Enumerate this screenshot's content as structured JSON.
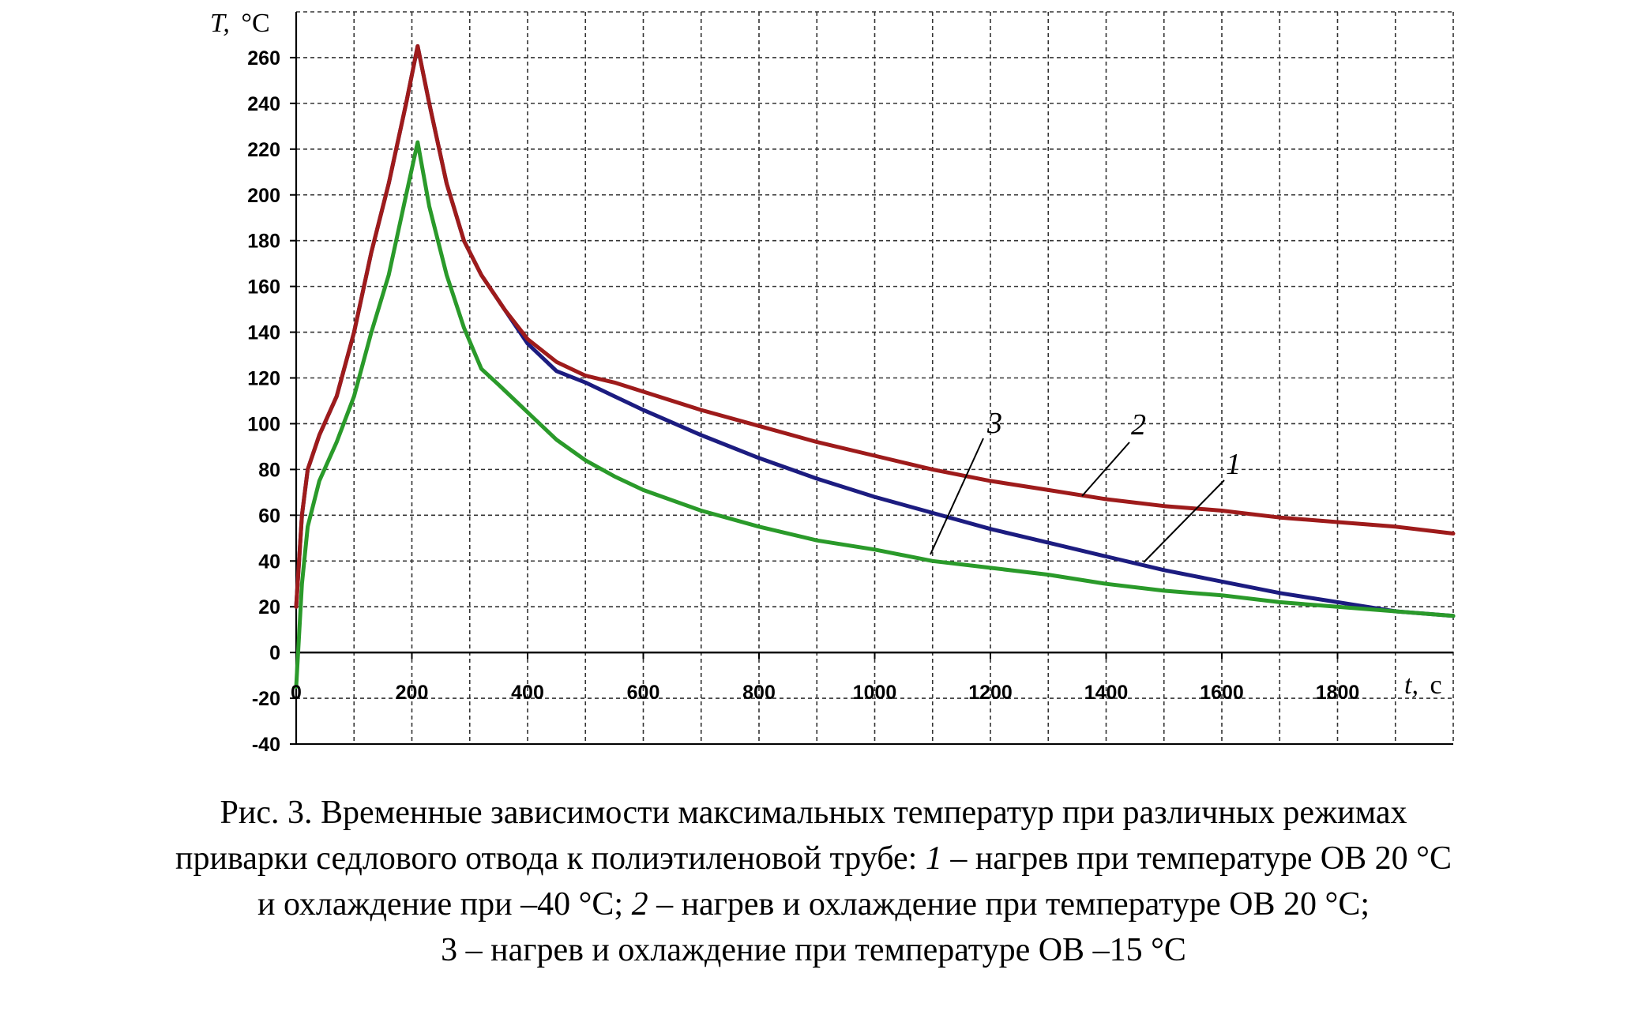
{
  "chart_data": {
    "type": "line",
    "xlabel_italic": "t,",
    "xlabel_unit": "c",
    "ylabel_italic": "T,",
    "ylabel_unit": "°C",
    "xlim": [
      0,
      2000
    ],
    "ylim": [
      -40,
      280
    ],
    "x_ticks": [
      0,
      200,
      400,
      600,
      800,
      1000,
      1200,
      1400,
      1600,
      1800
    ],
    "y_ticks": [
      -40,
      -20,
      0,
      20,
      40,
      60,
      80,
      100,
      120,
      140,
      160,
      180,
      200,
      220,
      240,
      260
    ],
    "grid": true,
    "series": [
      {
        "name": "1",
        "color": "#1c1c80",
        "points": [
          [
            0,
            20
          ],
          [
            10,
            60
          ],
          [
            20,
            80
          ],
          [
            40,
            95
          ],
          [
            70,
            112
          ],
          [
            100,
            140
          ],
          [
            130,
            175
          ],
          [
            160,
            205
          ],
          [
            190,
            240
          ],
          [
            210,
            265
          ],
          [
            230,
            240
          ],
          [
            260,
            205
          ],
          [
            290,
            180
          ],
          [
            320,
            165
          ],
          [
            360,
            150
          ],
          [
            400,
            135
          ],
          [
            450,
            123
          ],
          [
            500,
            118
          ],
          [
            550,
            112
          ],
          [
            600,
            106
          ],
          [
            700,
            95
          ],
          [
            800,
            85
          ],
          [
            900,
            76
          ],
          [
            1000,
            68
          ],
          [
            1100,
            61
          ],
          [
            1200,
            54
          ],
          [
            1300,
            48
          ],
          [
            1400,
            42
          ],
          [
            1500,
            36
          ],
          [
            1600,
            31
          ],
          [
            1700,
            26
          ],
          [
            1800,
            22
          ],
          [
            1900,
            18
          ],
          [
            2000,
            16
          ]
        ]
      },
      {
        "name": "2",
        "color": "#9e1b1b",
        "points": [
          [
            0,
            20
          ],
          [
            10,
            60
          ],
          [
            20,
            80
          ],
          [
            40,
            95
          ],
          [
            70,
            112
          ],
          [
            100,
            140
          ],
          [
            130,
            175
          ],
          [
            160,
            205
          ],
          [
            190,
            240
          ],
          [
            210,
            265
          ],
          [
            230,
            240
          ],
          [
            260,
            205
          ],
          [
            290,
            180
          ],
          [
            320,
            165
          ],
          [
            360,
            150
          ],
          [
            400,
            137
          ],
          [
            450,
            127
          ],
          [
            500,
            121
          ],
          [
            550,
            118
          ],
          [
            600,
            114
          ],
          [
            700,
            106
          ],
          [
            800,
            99
          ],
          [
            900,
            92
          ],
          [
            1000,
            86
          ],
          [
            1100,
            80
          ],
          [
            1200,
            75
          ],
          [
            1300,
            71
          ],
          [
            1400,
            67
          ],
          [
            1500,
            64
          ],
          [
            1600,
            62
          ],
          [
            1700,
            59
          ],
          [
            1800,
            57
          ],
          [
            1900,
            55
          ],
          [
            2000,
            52
          ]
        ]
      },
      {
        "name": "3",
        "color": "#2a9a2a",
        "points": [
          [
            0,
            -15
          ],
          [
            10,
            30
          ],
          [
            20,
            55
          ],
          [
            40,
            75
          ],
          [
            70,
            92
          ],
          [
            100,
            112
          ],
          [
            130,
            140
          ],
          [
            160,
            165
          ],
          [
            190,
            200
          ],
          [
            210,
            223
          ],
          [
            230,
            195
          ],
          [
            260,
            165
          ],
          [
            290,
            142
          ],
          [
            320,
            124
          ],
          [
            350,
            117
          ],
          [
            400,
            105
          ],
          [
            450,
            93
          ],
          [
            500,
            84
          ],
          [
            550,
            77
          ],
          [
            600,
            71
          ],
          [
            700,
            62
          ],
          [
            800,
            55
          ],
          [
            900,
            49
          ],
          [
            1000,
            45
          ],
          [
            1100,
            40
          ],
          [
            1200,
            37
          ],
          [
            1300,
            34
          ],
          [
            1400,
            30
          ],
          [
            1500,
            27
          ],
          [
            1600,
            25
          ],
          [
            1700,
            22
          ],
          [
            1800,
            20
          ],
          [
            1900,
            18
          ],
          [
            2000,
            16
          ]
        ]
      }
    ],
    "curve_labels": [
      {
        "text": "3",
        "series": "3"
      },
      {
        "text": "2",
        "series": "2"
      },
      {
        "text": "1",
        "series": "1"
      }
    ]
  },
  "caption": {
    "line1": "Рис. 3. Временные зависимости максимальных температур при различных режимах",
    "line2_start": "приварки седлового отвода к полиэтиленовой трубе: ",
    "line2_num": "1",
    "line2_end": " – нагрев при температуре ОВ 20 °С",
    "line3_start": "и охлаждение при –40 °С; ",
    "line3_num": "2",
    "line3_end": " – нагрев и охлаждение при температуре ОВ 20 °С;",
    "line4": "3 – нагрев и охлаждение при температуре ОВ –15 °С"
  }
}
